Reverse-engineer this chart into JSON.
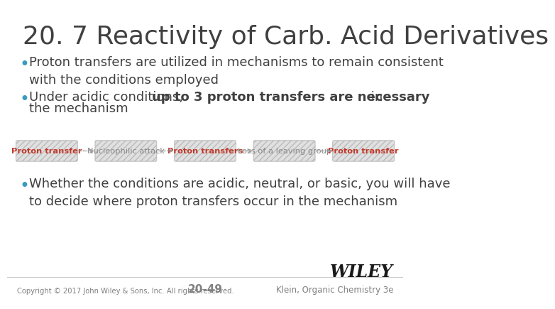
{
  "title": "20. 7 Reactivity of Carb. Acid Derivatives",
  "background_color": "#ffffff",
  "title_color": "#404040",
  "title_fontsize": 26,
  "bullet_color": "#3a9bbf",
  "text_color": "#404040",
  "bullet1_normal": "Proton transfers are utilized in mechanisms to remain consistent\nwith the conditions employed",
  "bullet2_prefix": "Under acidic conditions, ",
  "bullet2_bold": "up to 3 proton transfers are necessary",
  "bullet2_suffix": " in",
  "bullet2_line2": "the mechanism",
  "bullet3": "Whether the conditions are acidic, neutral, or basic, you will have\nto decide where proton transfers occur in the mechanism",
  "flow_steps": [
    {
      "label": "Proton transfer",
      "highlighted": true
    },
    {
      "label": "Nucleophilic attack",
      "highlighted": false
    },
    {
      "label": "Proton transfers",
      "highlighted": true
    },
    {
      "label": "Loss of a leaving group",
      "highlighted": false
    },
    {
      "label": "Proton transfer",
      "highlighted": true
    }
  ],
  "flow_highlight_color": "#c0392b",
  "flow_normal_color": "#888888",
  "flow_box_bg": "#e0e0e0",
  "copyright": "Copyright © 2017 John Wiley & Sons, Inc. All rights reserved.",
  "page_number": "20-49",
  "wiley_text": "WILEY",
  "klein_text": "Klein, Organic Chemistry 3e",
  "footer_color": "#808080"
}
